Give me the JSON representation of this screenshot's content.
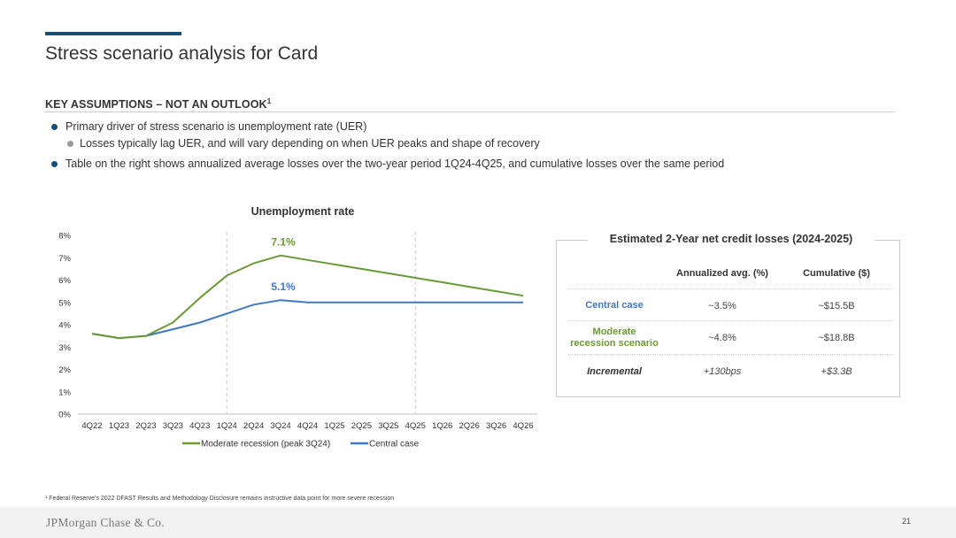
{
  "header": {
    "title": "Stress scenario analysis for Card",
    "accent_color": "#174e79"
  },
  "assumptions": {
    "heading": "KEY ASSUMPTIONS – NOT AN OUTLOOK",
    "heading_sup": "1",
    "bullets": [
      "Primary driver of stress scenario is unemployment rate (UER)",
      "Losses typically lag UER, and will vary depending on when UER peaks and shape of recovery",
      "Table on the right shows annualized average losses over the two-year period 1Q24-4Q25, and cumulative losses over the same period"
    ]
  },
  "chart_data": {
    "type": "line",
    "title": "Unemployment rate",
    "categories": [
      "4Q22",
      "1Q23",
      "2Q23",
      "3Q23",
      "4Q23",
      "1Q24",
      "2Q24",
      "3Q24",
      "4Q24",
      "1Q25",
      "2Q25",
      "3Q25",
      "4Q25",
      "1Q26",
      "2Q26",
      "3Q26",
      "4Q26"
    ],
    "series": [
      {
        "name": "Moderate recession (peak 3Q24)",
        "color": "#6a9a33",
        "values": [
          3.6,
          3.4,
          3.5,
          4.1,
          5.2,
          6.2,
          6.75,
          7.1,
          6.9,
          6.7,
          6.5,
          6.3,
          6.1,
          5.9,
          5.7,
          5.5,
          5.3
        ]
      },
      {
        "name": "Central case",
        "color": "#3f78c4",
        "values": [
          3.6,
          3.4,
          3.5,
          3.8,
          4.1,
          4.5,
          4.9,
          5.1,
          5.0,
          5.0,
          5.0,
          5.0,
          5.0,
          5.0,
          5.0,
          5.0,
          5.0
        ]
      }
    ],
    "y_ticks": [
      "0%",
      "1%",
      "2%",
      "3%",
      "4%",
      "5%",
      "6%",
      "7%",
      "8%"
    ],
    "ylim": [
      0,
      8
    ],
    "annotations": [
      {
        "text": "7.1%",
        "category": "3Q24",
        "series": 0
      },
      {
        "text": "5.1%",
        "category": "3Q24",
        "series": 1
      }
    ],
    "reference_lines": [
      "1Q24",
      "4Q25"
    ],
    "legend_position": "bottom"
  },
  "losses_table": {
    "title": "Estimated 2-Year net credit losses (2024-2025)",
    "columns": [
      "Annualized avg. (%)",
      "Cumulative ($)"
    ],
    "rows": [
      {
        "label": "Central case",
        "label_color": "#3f78c4",
        "italic": false,
        "values": [
          "~3.5%",
          "~$15.5B"
        ]
      },
      {
        "label_lines": [
          "Moderate",
          "recession scenario"
        ],
        "label_color": "#6a9a33",
        "italic": false,
        "values": [
          "~4.8%",
          "~$18.8B"
        ]
      },
      {
        "label": "Incremental",
        "label_color": "#333333",
        "italic": true,
        "values": [
          "+130bps",
          "+$3.3B"
        ]
      }
    ]
  },
  "footnote": "¹ Federal Reserve's 2022 DFAST Results and Methodology Disclosure remains instructive data point for more severe recession",
  "footer": {
    "logo": "JPMorgan Chase & Co.",
    "page_number": "21"
  }
}
